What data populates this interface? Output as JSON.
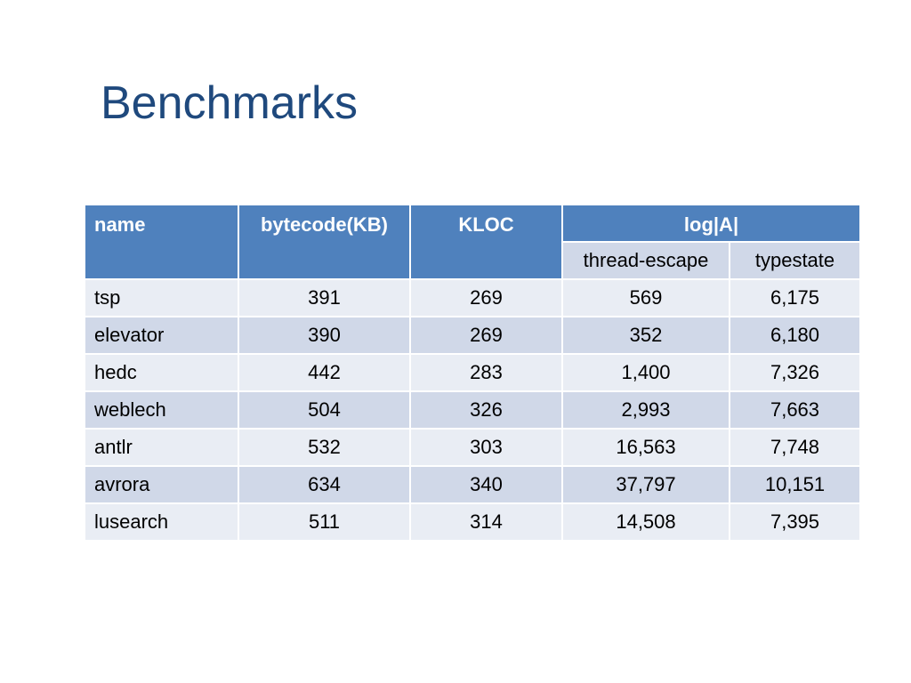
{
  "slide": {
    "title": "Benchmarks"
  },
  "table": {
    "headers": {
      "name": "name",
      "bytecode": "bytecode(KB)",
      "kloc": "KLOC",
      "log_a": "log|A|",
      "thread_escape": "thread-escape",
      "typestate": "typestate"
    },
    "rows": [
      {
        "name": "tsp",
        "bytecode": "391",
        "kloc": "269",
        "thread_escape": "569",
        "typestate": "6,175"
      },
      {
        "name": "elevator",
        "bytecode": "390",
        "kloc": "269",
        "thread_escape": "352",
        "typestate": "6,180"
      },
      {
        "name": "hedc",
        "bytecode": "442",
        "kloc": "283",
        "thread_escape": "1,400",
        "typestate": "7,326"
      },
      {
        "name": "weblech",
        "bytecode": "504",
        "kloc": "326",
        "thread_escape": "2,993",
        "typestate": "7,663"
      },
      {
        "name": "antlr",
        "bytecode": "532",
        "kloc": "303",
        "thread_escape": "16,563",
        "typestate": "7,748"
      },
      {
        "name": "avrora",
        "bytecode": "634",
        "kloc": "340",
        "thread_escape": "37,797",
        "typestate": "10,151"
      },
      {
        "name": "lusearch",
        "bytecode": "511",
        "kloc": "314",
        "thread_escape": "14,508",
        "typestate": "7,395"
      }
    ]
  },
  "colors": {
    "title": "#1f497d",
    "header": "#4f81bd",
    "row_light": "#e9edf4",
    "row_dark": "#d0d8e8"
  }
}
